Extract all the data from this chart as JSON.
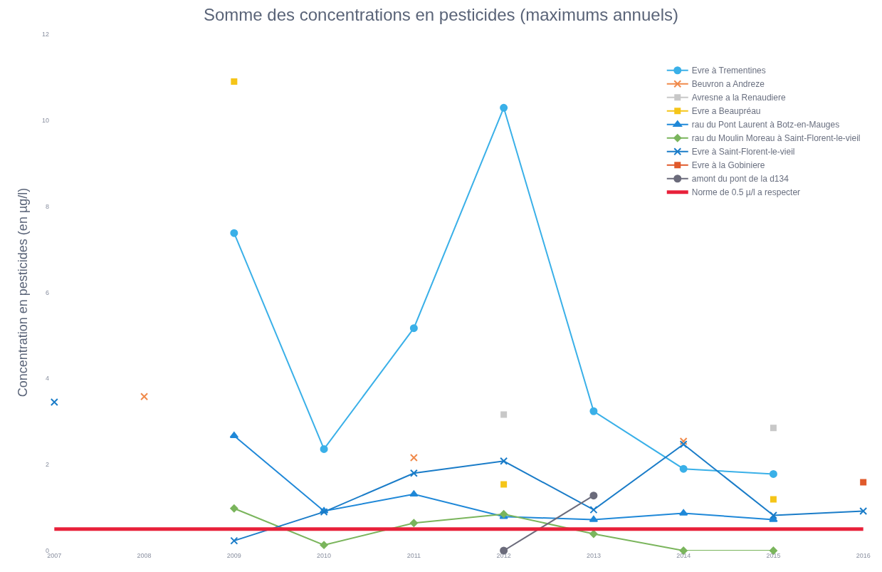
{
  "chart_data": {
    "type": "line",
    "title": "Somme des concentrations en pesticides (maximums annuels)",
    "ylabel": "Concentration en pesticides (en µg/l)",
    "categories": [
      "2007",
      "2008",
      "2009",
      "2010",
      "2011",
      "2012",
      "2013",
      "2014",
      "2015",
      "2016"
    ],
    "ylim": [
      0,
      12
    ],
    "yticks": [
      0,
      2,
      4,
      6,
      8,
      10,
      12
    ],
    "legend": "top right",
    "series": [
      {
        "name": "Evre à Trementines",
        "color": "#3ab0e8",
        "marker": "circle",
        "values": [
          null,
          null,
          7.38,
          2.36,
          5.17,
          10.29,
          3.24,
          1.9,
          1.78,
          null
        ]
      },
      {
        "name": "Beuvron a Andreze",
        "color": "#f08a4b",
        "marker": "cross",
        "values": [
          null,
          3.58,
          null,
          null,
          2.16,
          null,
          null,
          2.54,
          null,
          null
        ]
      },
      {
        "name": "Avresne a la Renaudiere",
        "color": "#c8c8c8",
        "marker": "square",
        "values": [
          null,
          null,
          null,
          null,
          null,
          3.16,
          null,
          null,
          2.85,
          null
        ]
      },
      {
        "name": "Evre a Beaupréau",
        "color": "#f5c518",
        "marker": "square",
        "values": [
          null,
          null,
          10.9,
          null,
          null,
          1.54,
          null,
          null,
          1.19,
          null
        ]
      },
      {
        "name": "rau du Pont Laurent à Botz-en-Mauges",
        "color": "#1f88d8",
        "marker": "triangle",
        "values": [
          null,
          null,
          2.67,
          0.92,
          1.31,
          0.79,
          0.72,
          0.87,
          0.72,
          null
        ]
      },
      {
        "name": "rau du Moulin Moreau à Saint-Florent-le-vieil",
        "color": "#7ab55c",
        "marker": "diamond",
        "values": [
          null,
          null,
          0.98,
          0.13,
          0.64,
          0.85,
          0.39,
          0,
          0,
          null
        ]
      },
      {
        "name": "Evre à Saint-Florent-le-vieil",
        "color": "#1a7cc8",
        "marker": "cross",
        "values": [
          3.45,
          null,
          0.23,
          0.9,
          1.8,
          2.08,
          0.95,
          2.47,
          0.82,
          0.92
        ]
      },
      {
        "name": "Evre à la Gobiniere",
        "color": "#e05a2b",
        "marker": "square",
        "values": [
          null,
          null,
          null,
          null,
          null,
          null,
          null,
          null,
          null,
          1.59
        ]
      },
      {
        "name": "amont du pont de la d134",
        "color": "#6b6b7b",
        "marker": "circle",
        "values": [
          null,
          null,
          null,
          null,
          null,
          0,
          1.28,
          null,
          null,
          null
        ]
      }
    ],
    "ref_lines": [
      {
        "axis": "y",
        "value": 0.5,
        "label": "Norme de 0.5 µ/l a respecter",
        "color": "#e8213a"
      }
    ]
  }
}
